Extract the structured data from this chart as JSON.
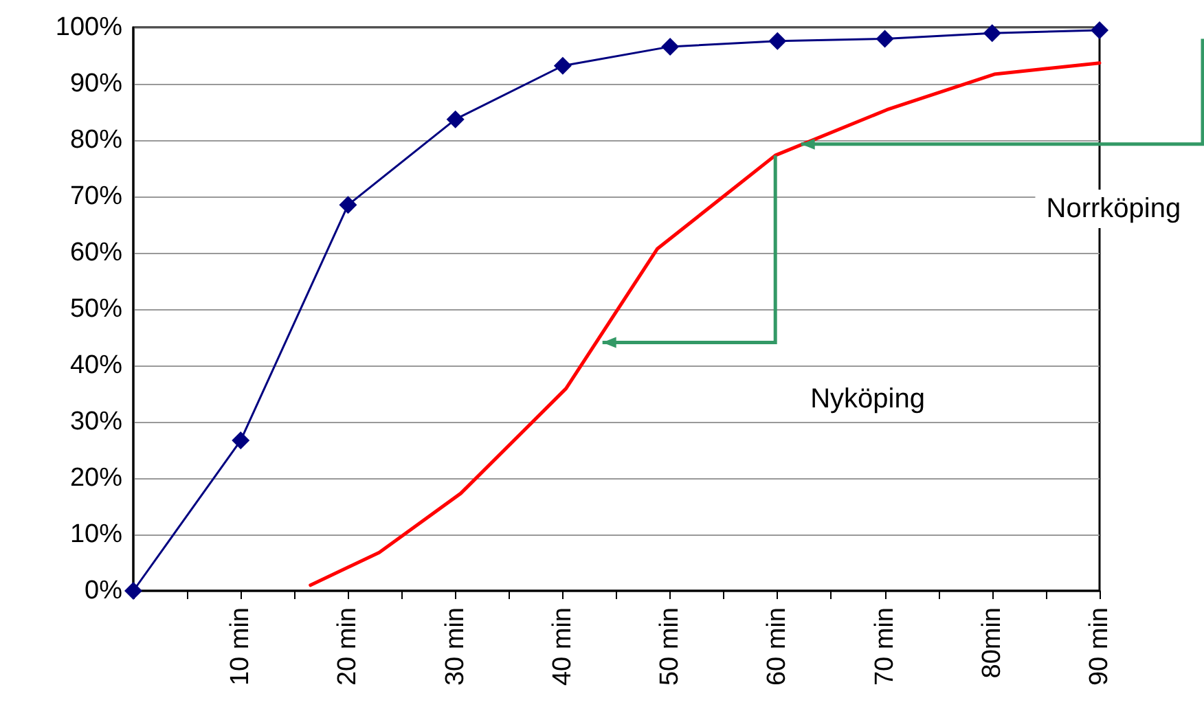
{
  "chart_data": {
    "type": "line",
    "xlim": [
      0,
      90
    ],
    "xticks": [
      {
        "value": 0,
        "label": null
      },
      {
        "value": 5,
        "label": null
      },
      {
        "value": 10,
        "label": "10 min"
      },
      {
        "value": 15,
        "label": null
      },
      {
        "value": 20,
        "label": "20 min"
      },
      {
        "value": 25,
        "label": null
      },
      {
        "value": 30,
        "label": "30 min"
      },
      {
        "value": 35,
        "label": null
      },
      {
        "value": 40,
        "label": "40 min"
      },
      {
        "value": 45,
        "label": null
      },
      {
        "value": 50,
        "label": "50 min"
      },
      {
        "value": 55,
        "label": null
      },
      {
        "value": 60,
        "label": "60 min"
      },
      {
        "value": 65,
        "label": null
      },
      {
        "value": 70,
        "label": "70 min"
      },
      {
        "value": 75,
        "label": null
      },
      {
        "value": 80,
        "label": "80min"
      },
      {
        "value": 85,
        "label": null
      },
      {
        "value": 90,
        "label": "90 min"
      }
    ],
    "ylim": [
      0,
      100
    ],
    "yticks": [
      {
        "value": 0,
        "label": "0%"
      },
      {
        "value": 10,
        "label": "10%"
      },
      {
        "value": 20,
        "label": "20%"
      },
      {
        "value": 30,
        "label": "30%"
      },
      {
        "value": 40,
        "label": "40%"
      },
      {
        "value": 50,
        "label": "50%"
      },
      {
        "value": 60,
        "label": "60%"
      },
      {
        "value": 70,
        "label": "70%"
      },
      {
        "value": 80,
        "label": "80%"
      },
      {
        "value": 90,
        "label": "90%"
      },
      {
        "value": 100,
        "label": "100%"
      }
    ],
    "grid": "y",
    "series": [
      {
        "color": "#000080",
        "marker": "diamond",
        "x": [
          0,
          10,
          20,
          30,
          40,
          50,
          60,
          70,
          80,
          90
        ],
        "values": [
          0,
          26.7,
          68.5,
          83.7,
          93.2,
          96.6,
          97.6,
          98,
          99,
          99.5
        ]
      },
      {
        "color": "#ff0000",
        "marker": "none",
        "x": [
          16.5,
          22.9,
          30.5,
          40.3,
          48.8,
          59.8,
          70.2,
          80.2,
          90
        ],
        "values": [
          1,
          6.8,
          17.3,
          35.9,
          60.7,
          77.3,
          85.4,
          91.7,
          93.7
        ]
      }
    ],
    "annotations": [
      "Norrköping",
      "Nyköping"
    ]
  }
}
